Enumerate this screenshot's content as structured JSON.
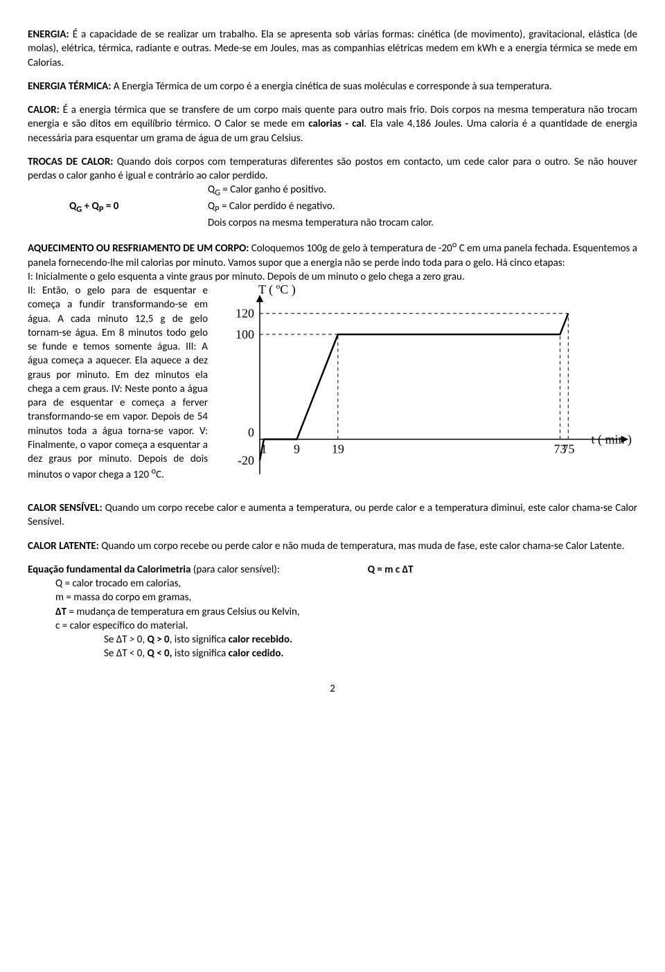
{
  "p1": {
    "label": "ENERGIA:",
    "text": " É a capacidade de se realizar um trabalho. Ela se apresenta sob várias formas: cinética (de movimento), gravitacional, elástica (de molas), elétrica, térmica, radiante e outras. Mede-se em Joules, mas as companhias elétricas medem em kWh e a energia térmica se mede em Calorias."
  },
  "p2": {
    "label": "ENERGIA TÉRMICA:",
    "text": " A Energia Térmica de um corpo é a energia cinética de suas moléculas e corresponde à sua temperatura."
  },
  "p3": {
    "label": "CALOR:",
    "text_a": " É a energia térmica que se transfere de um corpo mais quente para outro mais frio. Dois corpos na mesma temperatura não trocam energia e são ditos em equilíbrio térmico. O Calor se mede em ",
    "bold_b": "calorias - cal",
    "text_c": ". Ela vale 4,186 Joules. Uma caloria é a quantidade de energia necessária para esquentar um grama de água de um grau Celsius."
  },
  "p4": {
    "label": "TROCAS DE CALOR:",
    "text": " Quando dois corpos com temperaturas diferentes são postos em contacto, um cede calor para o outro. Se não houver perdas o calor ganho é igual e contrário ao calor perdido."
  },
  "eq": {
    "left_html": "Q<sub>G</sub>  + Q<sub>P</sub>  = 0",
    "r1_html": "Q<sub>G</sub> = Calor ganho é positivo.",
    "r2_html": "Q<sub>P</sub> = Calor perdido é negativo.",
    "r3": " Dois corpos na mesma temperatura não trocam calor."
  },
  "p5": {
    "label": "AQUECIMENTO OU RESFRIAMENTO DE UM CORPO:",
    "text_html": " Coloquemos 100g de gelo à temperatura de -20<sup>o</sup> C em uma panela fechada. Esquentemos a panela fornecendo-lhe mil calorias por minuto. Vamos supor que a energia não se perde indo toda para o gelo. Há cinco etapas:"
  },
  "stageI": "I: Inicialmente o gelo esquenta a  vinte graus por minuto. Depois de um minuto o gelo chega a zero grau.",
  "stageII": "II: Então, o gelo para de esquentar e começa a fundir transformando-se em água. A cada minuto 12,5 g de gelo tornam-se água. Em 8 minutos todo gelo se funde e temos somente água.",
  "stageIII": "III: A água começa a aquecer. Ela aquece a dez graus por minuto. Em dez minutos ela chega a cem graus.",
  "stageIV": "IV: Neste ponto a água para de esquentar e começa a ferver transformando-se em vapor. Depois de 54 minutos toda a água torna-se vapor.",
  "stageV_html": "V: Finalmente, o vapor começa a esquentar a dez graus por minuto. Depois de dois minutos o vapor chega a 120 <sup>o</sup>C.",
  "p6": {
    "label": "CALOR SENSÍVEL:",
    "text": " Quando um corpo recebe calor e aumenta a temperatura, ou perde calor e a temperatura diminui, este calor chama-se Calor Sensível."
  },
  "p7": {
    "label": "CALOR LATENTE:",
    "text": " Quando um corpo recebe ou perde calor e não muda de temperatura, mas muda de fase, este calor chama-se Calor Latente."
  },
  "eqf": {
    "label": "Equação fundamental da Calorimetria",
    "text_a": " (para calor sensível):",
    "formula": "Q = m c ΔT",
    "l1": "Q = calor trocado em calorias,",
    "l2": "m = massa do corpo em gramas,",
    "l3_html": "<b>ΔT</b> = mudança de temperatura em graus Celsius ou Kelvin,",
    "l4": "c = calor específico do material.",
    "l5_html": "Se ΔT > 0, <b>Q > 0</b>, isto significa <b>calor recebido.</b>",
    "l6_html": "Se ΔT < 0, <b>Q < 0,</b> isto significa <b>calor cedido.</b>"
  },
  "page_number": "2",
  "chart": {
    "type": "line",
    "y_label": "T ( ºC )",
    "x_label": "t ( min )",
    "x_ticks": [
      1,
      9,
      19,
      73,
      75
    ],
    "y_ticks": [
      -20,
      0,
      100,
      120
    ],
    "x_max_draw": 80,
    "y_min": -30,
    "y_max": 135,
    "points": [
      {
        "t": 0,
        "T": -20
      },
      {
        "t": 1,
        "T": 0
      },
      {
        "t": 9,
        "T": 0
      },
      {
        "t": 19,
        "T": 100
      },
      {
        "t": 73,
        "T": 100
      },
      {
        "t": 75,
        "T": 120
      }
    ],
    "line_color": "#000000",
    "line_width": 2.5,
    "axis_color": "#000000",
    "dash_color": "#000000",
    "background": "#ffffff",
    "font_family": "Times New Roman, serif",
    "font_size": 18
  }
}
